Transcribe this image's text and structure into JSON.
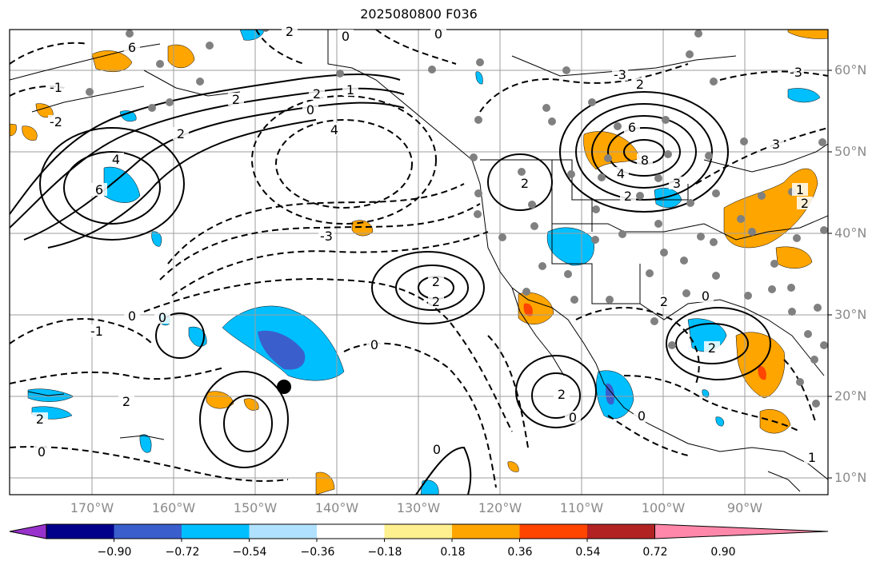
{
  "title": "2025080800 F036",
  "lat_labels": [
    "60°N",
    "50°N",
    "40°N",
    "30°N",
    "20°N",
    "10°N"
  ],
  "lon_labels": [
    "170°W",
    "160°W",
    "150°W",
    "140°W",
    "130°W",
    "120°W",
    "110°W",
    "100°W",
    "90°W"
  ],
  "colorbar": {
    "ticks": [
      "−0.90",
      "−0.72",
      "−0.54",
      "−0.36",
      "−0.18",
      "0.18",
      "0.36",
      "0.54",
      "0.72",
      "0.90"
    ],
    "colors": [
      "#9932cc",
      "#00008b",
      "#3a5fcd",
      "#00bfff",
      "#b0e2ff",
      "#ffffff",
      "#fff08f",
      "#ffa500",
      "#ff4500",
      "#b22222",
      "#ff88aa"
    ]
  },
  "contour_labels": [
    {
      "text": "6"
    },
    {
      "text": "6"
    },
    {
      "text": "4"
    },
    {
      "text": "2"
    },
    {
      "text": "2"
    },
    {
      "text": "1"
    },
    {
      "text": "0"
    },
    {
      "text": "4"
    },
    {
      "text": "2"
    },
    {
      "text": "-3"
    },
    {
      "text": "2"
    },
    {
      "text": "2"
    },
    {
      "text": "-3"
    },
    {
      "text": "2"
    },
    {
      "text": "6"
    },
    {
      "text": "8"
    },
    {
      "text": "4"
    },
    {
      "text": "3"
    },
    {
      "text": "2"
    },
    {
      "text": "3"
    },
    {
      "text": "-3"
    },
    {
      "text": "2"
    },
    {
      "text": "2"
    },
    {
      "text": "0"
    },
    {
      "text": "2"
    },
    {
      "text": "0"
    },
    {
      "text": "-1"
    },
    {
      "text": "0"
    },
    {
      "text": "0"
    },
    {
      "text": "2"
    },
    {
      "text": "2"
    },
    {
      "text": "0"
    },
    {
      "text": "2"
    },
    {
      "text": "0"
    },
    {
      "text": "0"
    },
    {
      "text": "0"
    },
    {
      "text": "2"
    },
    {
      "text": "1"
    },
    {
      "text": "0"
    },
    {
      "text": "-1"
    },
    {
      "text": "-2"
    },
    {
      "text": "1"
    },
    {
      "text": "2"
    },
    {
      "text": "0"
    }
  ]
}
